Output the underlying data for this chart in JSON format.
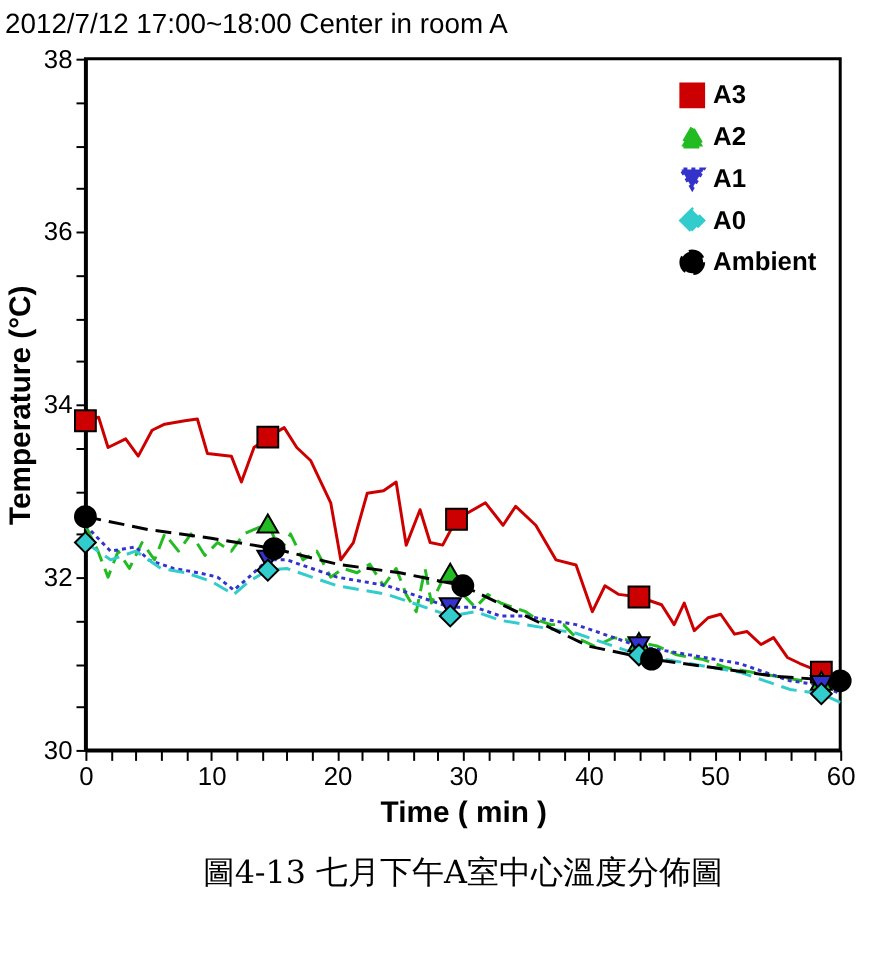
{
  "chart_data": {
    "type": "line",
    "title": "2012/7/12  17:00~18:00  Center in room A",
    "xlabel": "Time ( min )",
    "ylabel": "Temperature (°C)",
    "xlim": [
      0,
      60
    ],
    "ylim": [
      30,
      38
    ],
    "xticks": [
      0,
      {
        "value": 2,
        "label": null
      },
      {
        "value": 4,
        "label": null
      },
      {
        "value": 6,
        "label": null
      },
      {
        "value": 8,
        "label": null
      },
      10,
      {
        "value": 12,
        "label": null
      },
      {
        "value": 14,
        "label": null
      },
      {
        "value": 16,
        "label": null
      },
      {
        "value": 18,
        "label": null
      },
      20,
      {
        "value": 22,
        "label": null
      },
      {
        "value": 24,
        "label": null
      },
      {
        "value": 26,
        "label": null
      },
      {
        "value": 28,
        "label": null
      },
      30,
      {
        "value": 32,
        "label": null
      },
      {
        "value": 34,
        "label": null
      },
      {
        "value": 36,
        "label": null
      },
      {
        "value": 38,
        "label": null
      },
      40,
      {
        "value": 42,
        "label": null
      },
      {
        "value": 44,
        "label": null
      },
      {
        "value": 46,
        "label": null
      },
      {
        "value": 48,
        "label": null
      },
      50,
      {
        "value": 52,
        "label": null
      },
      {
        "value": 54,
        "label": null
      },
      {
        "value": 56,
        "label": null
      },
      {
        "value": 58,
        "label": null
      },
      60
    ],
    "yticks": [
      30,
      {
        "value": 30.5,
        "label": null
      },
      {
        "value": 31,
        "label": null
      },
      {
        "value": 31.5,
        "label": null
      },
      32,
      {
        "value": 32.5,
        "label": null
      },
      {
        "value": 33,
        "label": null
      },
      {
        "value": 33.5,
        "label": null
      },
      34,
      {
        "value": 34.5,
        "label": null
      },
      {
        "value": 35,
        "label": null
      },
      {
        "value": 35.5,
        "label": null
      },
      36,
      {
        "value": 36.5,
        "label": null
      },
      {
        "value": 37,
        "label": null
      },
      {
        "value": 37.5,
        "label": null
      },
      38
    ],
    "grid": false,
    "legend": "top right",
    "annotations": [
      "圖4-13 七月下午A室中心溫度分佈圖"
    ],
    "series": [
      {
        "name": "A3",
        "color": "#cc0000",
        "line_style": "solid",
        "x": [
          0,
          1.05,
          1.8,
          3.2,
          4.2,
          5.3,
          6.3,
          7.9,
          8.9,
          9.7,
          11.6,
          12.4,
          13.4,
          14.5,
          15.8,
          16.8,
          17.9,
          19.5,
          20.3,
          21.3,
          22.4,
          23.7,
          24.7,
          25.5,
          26.6,
          27.4,
          28.4,
          29.5,
          31.8,
          33.2,
          34.2,
          35.8,
          37.4,
          39.0,
          40.3,
          41.3,
          42.4,
          44.0,
          45.8,
          46.8,
          47.6,
          48.4,
          49.5,
          50.5,
          51.6,
          52.6,
          53.7,
          54.7,
          55.8,
          56.8,
          58.5,
          59.5
        ],
        "values": [
          33.81,
          33.85,
          33.5,
          33.6,
          33.4,
          33.7,
          33.77,
          33.81,
          33.83,
          33.43,
          33.4,
          33.1,
          33.5,
          33.62,
          33.73,
          33.5,
          33.35,
          32.86,
          32.2,
          32.4,
          32.97,
          33.0,
          33.1,
          32.37,
          32.78,
          32.4,
          32.37,
          32.67,
          32.86,
          32.6,
          32.82,
          32.6,
          32.2,
          32.14,
          31.6,
          31.9,
          31.8,
          31.77,
          31.68,
          31.45,
          31.7,
          31.38,
          31.53,
          31.57,
          31.34,
          31.37,
          31.22,
          31.3,
          31.07,
          31.0,
          30.9,
          30.84
        ]
      },
      {
        "name": "A2",
        "color": "#22bb22",
        "line_style": "dashed",
        "x": [
          0,
          1,
          1.8,
          2.6,
          3.5,
          4.5,
          5.5,
          6.3,
          7.4,
          8.4,
          9.5,
          10.5,
          11.6,
          12.6,
          14.5,
          15.5,
          16.3,
          17.3,
          18.4,
          19.5,
          20.5,
          21.6,
          22.6,
          23.7,
          24.7,
          25.5,
          26.3,
          27,
          27.5,
          28.5,
          29,
          30,
          31,
          32,
          33,
          34,
          35,
          36,
          37,
          38,
          39,
          40.5,
          42,
          44,
          45.5,
          47,
          49,
          51,
          53,
          55,
          57,
          58.5,
          60
        ],
        "values": [
          32.6,
          32.3,
          32.0,
          32.3,
          32.1,
          32.4,
          32.2,
          32.5,
          32.3,
          32.5,
          32.25,
          32.4,
          32.3,
          32.5,
          32.62,
          32.3,
          32.5,
          32.2,
          32.3,
          32.0,
          32.1,
          32.05,
          32.15,
          31.9,
          32.1,
          31.8,
          31.6,
          32.1,
          31.7,
          32.0,
          32.05,
          31.8,
          31.65,
          31.8,
          31.7,
          31.65,
          31.6,
          31.5,
          31.45,
          31.45,
          31.3,
          31.2,
          31.3,
          31.25,
          31.2,
          31.1,
          31.05,
          30.95,
          30.9,
          30.85,
          30.8,
          30.8,
          30.7
        ]
      },
      {
        "name": "A1",
        "color": "#3333cc",
        "line_style": "dotted",
        "x": [
          0,
          2,
          4,
          5,
          7,
          9,
          10.5,
          11.8,
          13,
          14.5,
          16,
          18,
          20,
          22,
          24,
          26,
          28,
          29,
          31,
          33,
          35,
          37,
          39,
          41,
          44,
          46,
          48,
          50,
          52,
          54,
          56,
          58.5,
          60
        ],
        "values": [
          32.6,
          32.3,
          32.35,
          32.2,
          32.1,
          32.05,
          32.0,
          31.85,
          32.0,
          32.2,
          32.2,
          32.1,
          32.0,
          31.95,
          31.9,
          31.8,
          31.7,
          31.65,
          31.65,
          31.55,
          31.55,
          31.5,
          31.45,
          31.35,
          31.2,
          31.15,
          31.1,
          31.05,
          31.0,
          30.9,
          30.8,
          30.75,
          30.65
        ]
      },
      {
        "name": "A0",
        "color": "#33cccc",
        "line_style": "dashed",
        "x": [
          0,
          2,
          4,
          6,
          8,
          10,
          11.8,
          13,
          14.5,
          16,
          18,
          20,
          22,
          24,
          26,
          28,
          29,
          31,
          33,
          35,
          37,
          39,
          41,
          44,
          46,
          48,
          50,
          52,
          54,
          56,
          58.5,
          60
        ],
        "values": [
          32.4,
          32.2,
          32.3,
          32.1,
          32.05,
          31.95,
          31.8,
          31.95,
          32.08,
          32.1,
          32.0,
          31.9,
          31.85,
          31.8,
          31.7,
          31.6,
          31.55,
          31.6,
          31.5,
          31.45,
          31.4,
          31.35,
          31.25,
          31.1,
          31.05,
          31.0,
          30.95,
          30.9,
          30.8,
          30.7,
          30.65,
          30.55
        ]
      },
      {
        "name": "Ambient",
        "color": "#000000",
        "line_style": "dashed",
        "x": [
          0,
          5,
          10,
          15,
          20,
          25,
          30,
          35,
          40,
          45,
          50,
          55,
          60
        ],
        "values": [
          32.7,
          32.55,
          32.45,
          32.33,
          32.15,
          32.05,
          31.9,
          31.55,
          31.2,
          31.05,
          30.95,
          30.85,
          30.8
        ]
      },
      {
        "type": "scatter",
        "color": "#cc0000",
        "marker": "square",
        "x": [
          0,
          14.5,
          29.5,
          44.0,
          58.5
        ],
        "values": [
          33.81,
          33.62,
          32.67,
          31.77,
          30.9
        ]
      },
      {
        "type": "scatter",
        "color": "#22bb22",
        "marker": "triangle",
        "x": [
          14.5,
          29,
          44,
          58.5
        ],
        "values": [
          32.62,
          32.05,
          31.25,
          30.8
        ]
      },
      {
        "type": "scatter",
        "color": "#3333cc",
        "marker": "triangle-down",
        "x": [
          14.5,
          29,
          44,
          58.5
        ],
        "values": [
          32.2,
          31.65,
          31.2,
          30.75
        ]
      },
      {
        "type": "scatter",
        "color": "#33cccc",
        "marker": "diamond",
        "x": [
          0,
          14.5,
          29,
          44,
          58.5
        ],
        "values": [
          32.4,
          32.08,
          31.55,
          31.1,
          30.65
        ]
      },
      {
        "type": "scatter",
        "color": "#000000",
        "marker": "circle",
        "x": [
          0,
          15,
          30,
          45,
          60
        ],
        "values": [
          32.7,
          32.33,
          31.9,
          31.05,
          30.8
        ]
      }
    ]
  }
}
